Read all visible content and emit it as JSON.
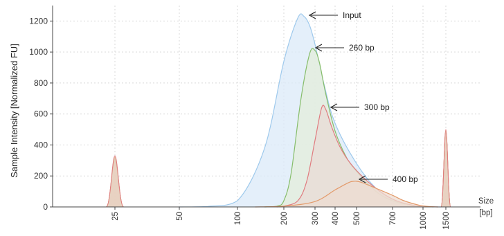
{
  "chart_data": {
    "type": "area",
    "ylabel": "Sample Intensity [Normalized FU]",
    "xlabel_line1": "Size",
    "xlabel_line2": "[bp]",
    "ylim": [
      0,
      1300
    ],
    "y_ticks": [
      "0",
      "200",
      "400",
      "600",
      "800",
      "1000",
      "1200"
    ],
    "x_ticks": [
      "25",
      "50",
      "100",
      "200",
      "300",
      "400",
      "500",
      "700",
      "1000",
      "1500"
    ],
    "grid": true,
    "series": [
      {
        "annotation": "Input",
        "color": "#9ec9ec",
        "fill": "#dbeaf8",
        "points": [
          [
            50,
            0
          ],
          [
            70,
            3
          ],
          [
            100,
            40
          ],
          [
            150,
            380
          ],
          [
            200,
            940
          ],
          [
            240,
            1220
          ],
          [
            260,
            1230
          ],
          [
            280,
            1170
          ],
          [
            300,
            1050
          ],
          [
            340,
            800
          ],
          [
            400,
            540
          ],
          [
            500,
            280
          ],
          [
            600,
            120
          ],
          [
            700,
            50
          ],
          [
            800,
            15
          ],
          [
            1000,
            2
          ],
          [
            1400,
            0
          ]
        ]
      },
      {
        "annotation": "260 bp",
        "color": "#86bd6a",
        "fill": "#e4eedb",
        "points": [
          [
            150,
            0
          ],
          [
            180,
            5
          ],
          [
            200,
            40
          ],
          [
            220,
            220
          ],
          [
            250,
            700
          ],
          [
            280,
            990
          ],
          [
            300,
            1010
          ],
          [
            320,
            930
          ],
          [
            350,
            730
          ],
          [
            400,
            490
          ],
          [
            450,
            320
          ],
          [
            500,
            230
          ],
          [
            600,
            100
          ],
          [
            700,
            40
          ],
          [
            900,
            8
          ],
          [
            1200,
            0
          ]
        ]
      },
      {
        "annotation": "300 bp",
        "color": "#e07b7f",
        "fill": "#eadbd5",
        "points": [
          [
            180,
            0
          ],
          [
            200,
            5
          ],
          [
            240,
            40
          ],
          [
            270,
            170
          ],
          [
            300,
            430
          ],
          [
            330,
            640
          ],
          [
            350,
            630
          ],
          [
            380,
            520
          ],
          [
            420,
            390
          ],
          [
            470,
            280
          ],
          [
            550,
            170
          ],
          [
            650,
            80
          ],
          [
            750,
            35
          ],
          [
            900,
            10
          ],
          [
            1100,
            2
          ],
          [
            1300,
            0
          ]
        ]
      },
      {
        "annotation": "400 bp",
        "color": "#e39a6a",
        "fill": "#eddcd0",
        "points": [
          [
            130,
            0
          ],
          [
            200,
            5
          ],
          [
            300,
            35
          ],
          [
            400,
            110
          ],
          [
            450,
            150
          ],
          [
            480,
            165
          ],
          [
            520,
            160
          ],
          [
            600,
            120
          ],
          [
            700,
            75
          ],
          [
            800,
            40
          ],
          [
            950,
            12
          ],
          [
            1100,
            3
          ],
          [
            1300,
            0
          ]
        ]
      }
    ],
    "marker_peaks": [
      {
        "x": 25,
        "ys": [
          330,
          320,
          310,
          300
        ],
        "colors": [
          "#e07b7f",
          "#e39a6a",
          "#86bd6a",
          "#d4905a"
        ]
      },
      {
        "x": 1500,
        "ys": [
          500,
          495,
          490,
          485
        ],
        "colors": [
          "#e07b7f",
          "#e39a6a",
          "#86bd6a",
          "#d4905a"
        ]
      }
    ]
  }
}
